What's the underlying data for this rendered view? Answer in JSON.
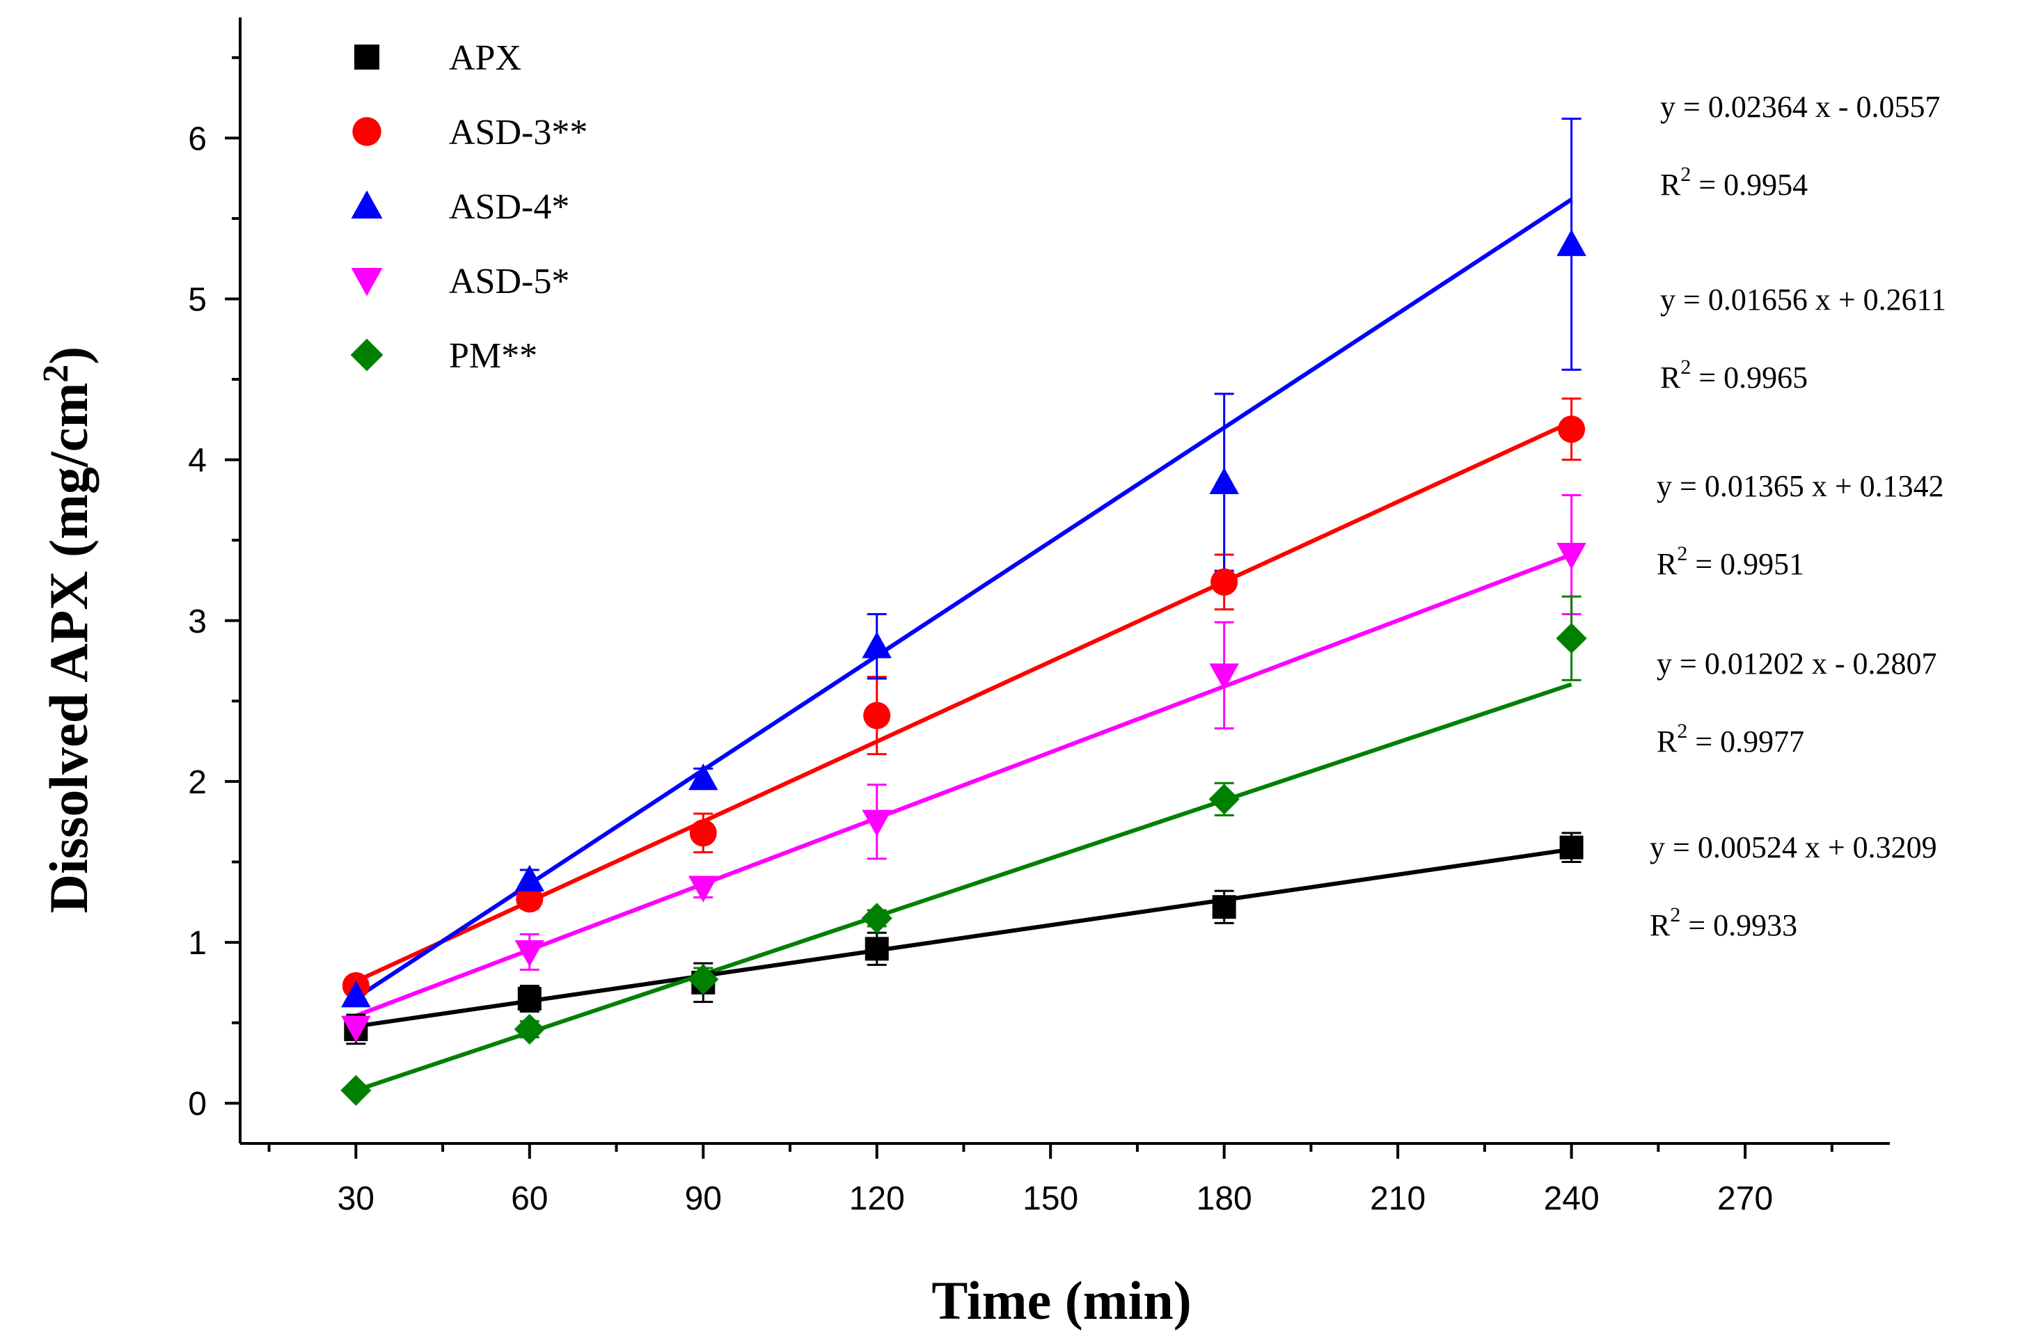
{
  "chart_data": {
    "type": "scatter",
    "title": "",
    "xlabel": "Time (min)",
    "ylabel": "Dissolved APX (mg/cm2)",
    "ylabel_main": "Dissolved APX (mg/cm",
    "ylabel_sup": "2",
    "ylabel_close": ")",
    "xlim": [
      10,
      295
    ],
    "ylim": [
      -0.25,
      6.75
    ],
    "x_ticks": [
      30,
      60,
      90,
      120,
      150,
      180,
      210,
      240,
      270
    ],
    "y_ticks": [
      0,
      1,
      2,
      3,
      4,
      5,
      6
    ],
    "legend_position": "top-left",
    "series": [
      {
        "name": "APX",
        "color": "#000000",
        "marker": "square",
        "x": [
          30,
          60,
          90,
          120,
          180,
          240
        ],
        "y": [
          0.46,
          0.65,
          0.75,
          0.96,
          1.22,
          1.59
        ],
        "err": [
          0.09,
          0.08,
          0.12,
          0.1,
          0.1,
          0.09
        ],
        "fit": {
          "slope": 0.00524,
          "intercept": 0.3209,
          "equation": "y = 0.00524 x + 0.3209",
          "r2_prefix": "R",
          "r2_sup": "2",
          "r2_value": " = 0.9933"
        }
      },
      {
        "name": "ASD-3**",
        "color": "#ff0000",
        "marker": "circle",
        "x": [
          30,
          60,
          90,
          120,
          180,
          240
        ],
        "y": [
          0.73,
          1.27,
          1.68,
          2.41,
          3.24,
          4.19
        ],
        "err": [
          0.05,
          0.06,
          0.12,
          0.24,
          0.17,
          0.19
        ],
        "fit": {
          "slope": 0.01656,
          "intercept": 0.2611,
          "equation": "y = 0.01656 x + 0.2611",
          "r2_prefix": "R",
          "r2_sup": "2",
          "r2_value": " = 0.9965"
        }
      },
      {
        "name": "ASD-4*",
        "color": "#0000ff",
        "marker": "triangle-up",
        "x": [
          30,
          60,
          90,
          120,
          180,
          240
        ],
        "y": [
          0.67,
          1.39,
          2.02,
          2.84,
          3.86,
          5.34
        ],
        "err": [
          0.05,
          0.06,
          0.06,
          0.2,
          0.55,
          0.78
        ],
        "fit": {
          "slope": 0.02364,
          "intercept": -0.0557,
          "equation": "y = 0.02364 x - 0.0557",
          "r2_prefix": "R",
          "r2_sup": "2",
          "r2_value": " = 0.9954"
        }
      },
      {
        "name": "ASD-5*",
        "color": "#ff00ff",
        "marker": "triangle-down",
        "x": [
          30,
          60,
          90,
          120,
          180,
          240
        ],
        "y": [
          0.47,
          0.94,
          1.34,
          1.75,
          2.66,
          3.41
        ],
        "err": [
          0.06,
          0.11,
          0.06,
          0.23,
          0.33,
          0.37
        ],
        "fit": {
          "slope": 0.01365,
          "intercept": 0.1342,
          "equation": "y = 0.01365 x + 0.1342",
          "r2_prefix": "R",
          "r2_sup": "2",
          "r2_value": " = 0.9951"
        }
      },
      {
        "name": "PM**",
        "color": "#008000",
        "marker": "diamond",
        "x": [
          30,
          60,
          90,
          120,
          180,
          240
        ],
        "y": [
          0.08,
          0.46,
          0.77,
          1.15,
          1.89,
          2.89
        ],
        "err": [
          0.03,
          0.05,
          0.07,
          0.05,
          0.1,
          0.26
        ],
        "fit": {
          "slope": 0.01202,
          "intercept": -0.2807,
          "equation": "y = 0.01202 x - 0.2807",
          "r2_prefix": "R",
          "r2_sup": "2",
          "r2_value": " = 0.9977"
        }
      }
    ],
    "annotation_order": [
      "ASD-4*",
      "ASD-3**",
      "ASD-5*",
      "PM**",
      "APX"
    ]
  }
}
